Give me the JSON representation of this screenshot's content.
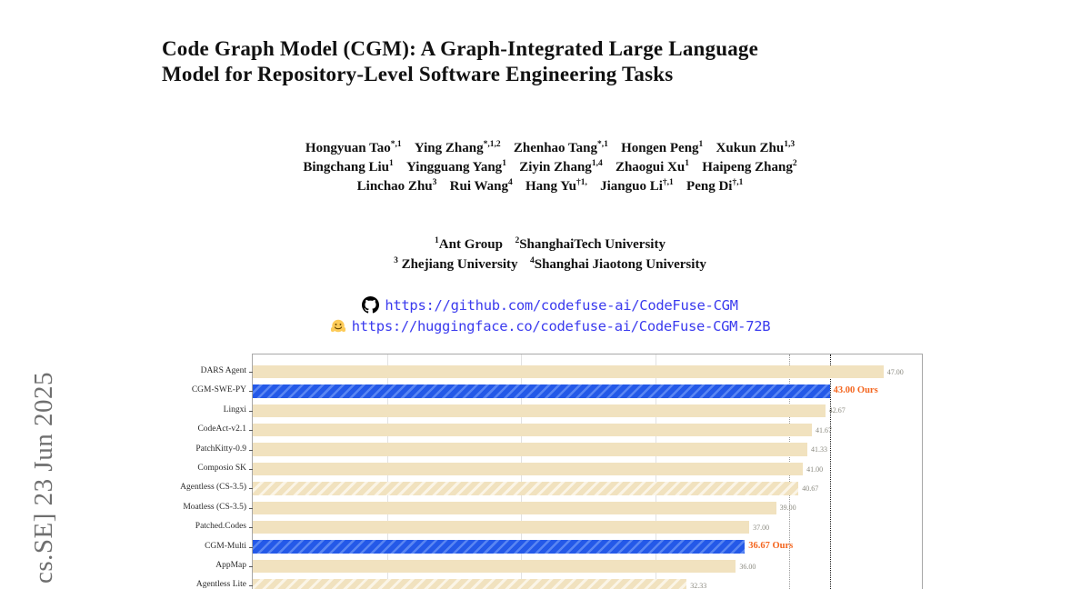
{
  "arxiv_stamp": "cs.SE]  23 Jun 2025",
  "title": {
    "line1": "Code Graph Model (CGM): A Graph-Integrated Large Language",
    "line2": "Model for Repository-Level Software Engineering Tasks"
  },
  "authors": {
    "lines": [
      [
        {
          "name": "Hongyuan Tao",
          "sup": "*,1"
        },
        {
          "name": "Ying Zhang",
          "sup": "*,1,2"
        },
        {
          "name": "Zhenhao Tang",
          "sup": "*,1"
        },
        {
          "name": "Hongen Peng",
          "sup": "1"
        },
        {
          "name": "Xukun Zhu",
          "sup": "1,3"
        }
      ],
      [
        {
          "name": "Bingchang Liu",
          "sup": "1"
        },
        {
          "name": "Yingguang Yang",
          "sup": "1"
        },
        {
          "name": "Ziyin Zhang",
          "sup": "1,4"
        },
        {
          "name": "Zhaogui Xu",
          "sup": "1"
        },
        {
          "name": "Haipeng Zhang",
          "sup": "2"
        }
      ],
      [
        {
          "name": "Linchao Zhu",
          "sup": "3"
        },
        {
          "name": "Rui Wang",
          "sup": "4"
        },
        {
          "name": "Hang Yu",
          "sup": "†1,"
        },
        {
          "name": "Jianguo Li",
          "sup": "†,1"
        },
        {
          "name": "Peng Di",
          "sup": "†,1"
        }
      ]
    ]
  },
  "affiliations": {
    "lines": [
      [
        {
          "sup": "1",
          "text": "Ant Group"
        },
        {
          "sup": "2",
          "text": "ShanghaiTech University"
        }
      ],
      [
        {
          "sup": "3",
          "text": " Zhejiang University"
        },
        {
          "sup": "4",
          "text": "Shanghai Jiaotong University"
        }
      ]
    ]
  },
  "links": [
    {
      "icon": "github-icon",
      "url": "https://github.com/codefuse-ai/CodeFuse-CGM"
    },
    {
      "icon": "huggingface-icon",
      "url": "https://huggingface.co/codefuse-ai/CodeFuse-CGM-72B"
    }
  ],
  "colors": {
    "link_blue": "#3b3bee",
    "stamp_gray": "#6f6f6f",
    "bar_tan": "#f1e2bf",
    "bar_blue": "#2459e8",
    "ours_orange": "#f4661f",
    "value_gray": "#8b8a80"
  },
  "chart_data": {
    "type": "bar",
    "orientation": "horizontal",
    "title": "",
    "xlabel": "",
    "ylabel": "",
    "grid": "on",
    "legend": "none",
    "xlim": [
      0,
      50
    ],
    "categories": [
      "DARS Agent",
      "CGM-SWE-PY",
      "Lingxi",
      "CodeAct-v2.1",
      "PatchKitty-0.9",
      "Composio SK",
      "Agentless (CS-3.5)",
      "Moatless (CS-3.5)",
      "Patched.Codes",
      "CGM-Multi",
      "AppMap",
      "Agentless Lite"
    ],
    "values": [
      47.0,
      43.0,
      42.67,
      41.67,
      41.33,
      41.0,
      40.67,
      39.0,
      37.0,
      36.67,
      36.0,
      32.33
    ],
    "value_labels": [
      "47.00",
      "43.00 Ours",
      "42.67",
      "41.67",
      "41.33",
      "41.00",
      "40.67",
      "39.00",
      "37.00",
      "36.67 Ours",
      "36.00",
      "32.33"
    ],
    "bar_styles": [
      "tan",
      "blue-hatch",
      "tan",
      "tan",
      "tan",
      "tan",
      "tan-hatch",
      "tan",
      "tan",
      "blue-hatch",
      "tan",
      "tan-hatch"
    ],
    "highlight_indices": [
      1,
      9
    ],
    "gridlines": [
      {
        "x": 10,
        "style": "solid"
      },
      {
        "x": 20,
        "style": "solid"
      },
      {
        "x": 30,
        "style": "solid"
      },
      {
        "x": 40,
        "style": "dotted"
      }
    ],
    "reference_line": {
      "x": 43.0,
      "style": "dotted-black"
    }
  }
}
